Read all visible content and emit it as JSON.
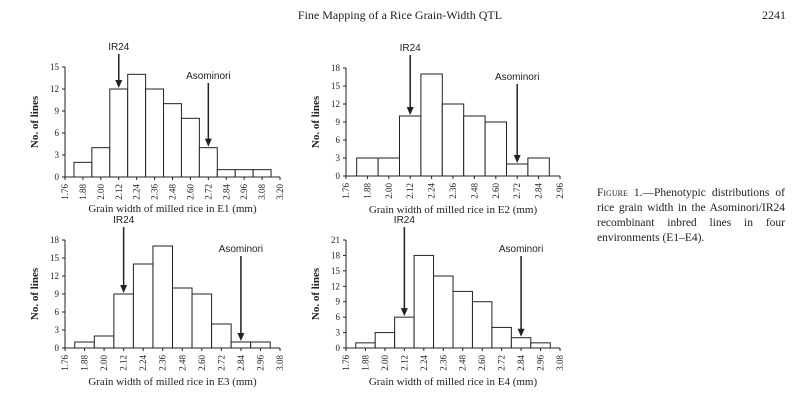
{
  "header": {
    "title": "Fine Mapping of a Rice Grain-Width QTL",
    "page": "2241"
  },
  "caption": {
    "label": "Figure 1.",
    "text": "—Phenotypic distributions of rice grain width in the Asominori/IR24 recombinant inbred lines in four environments (E1–E4)."
  },
  "chart_data": [
    {
      "type": "histogram",
      "xlabel": "Grain width of milled rice in E1 (mm)",
      "ylabel": "No. of lines",
      "bins": [
        1.82,
        1.94,
        2.06,
        2.18,
        2.3,
        2.42,
        2.54,
        2.66,
        2.78,
        2.9,
        3.02,
        3.14
      ],
      "values": [
        2,
        4,
        12,
        14,
        12,
        10,
        8,
        4,
        1,
        1,
        1
      ],
      "color": "#ffffff",
      "xlim": [
        1.76,
        3.2
      ],
      "xticks": [
        1.76,
        1.88,
        {
          "value": 2,
          "label": "2.00"
        },
        2.12,
        2.24,
        2.36,
        2.48,
        {
          "value": 2.6,
          "label": "2.60"
        },
        2.72,
        2.84,
        2.96,
        3.08,
        {
          "value": 3.2,
          "label": "3.20"
        }
      ],
      "ylim": [
        0,
        15
      ],
      "yticks": [
        0,
        3,
        6,
        9,
        12,
        15
      ],
      "annotations": [
        {
          "text": "IR24",
          "x": 2.12
        },
        {
          "text": "Asominori",
          "x": 2.72
        }
      ]
    },
    {
      "type": "histogram",
      "xlabel": "Grain width of milled rice in E2 (mm)",
      "ylabel": "No. of lines",
      "bins": [
        1.82,
        1.94,
        2.06,
        2.18,
        2.3,
        2.42,
        2.54,
        2.66,
        2.78,
        2.9
      ],
      "values": [
        3,
        3,
        10,
        17,
        12,
        10,
        9,
        2,
        3
      ],
      "color": "#ffffff",
      "xlim": [
        1.76,
        2.96
      ],
      "xticks": [
        1.76,
        1.88,
        {
          "value": 2,
          "label": "2.00"
        },
        2.12,
        2.24,
        2.36,
        2.48,
        {
          "value": 2.6,
          "label": "2.60"
        },
        2.72,
        2.84,
        2.96
      ],
      "ylim": [
        0,
        18
      ],
      "yticks": [
        0,
        3,
        6,
        9,
        12,
        15,
        18
      ],
      "annotations": [
        {
          "text": "IR24",
          "x": 2.12
        },
        {
          "text": "Asominori",
          "x": 2.72
        }
      ]
    },
    {
      "type": "histogram",
      "xlabel": "Grain width of milled rice in E3 (mm)",
      "ylabel": "No. of lines",
      "bins": [
        1.82,
        1.94,
        2.06,
        2.18,
        2.3,
        2.42,
        2.54,
        2.66,
        2.78,
        2.9,
        3.02
      ],
      "values": [
        1,
        2,
        9,
        14,
        17,
        10,
        9,
        4,
        1,
        1
      ],
      "color": "#ffffff",
      "xlim": [
        1.76,
        3.08
      ],
      "xticks": [
        1.76,
        1.88,
        {
          "value": 2,
          "label": "2.00"
        },
        2.12,
        2.24,
        2.36,
        2.48,
        {
          "value": 2.6,
          "label": "2.60"
        },
        2.72,
        2.84,
        2.96,
        3.08
      ],
      "ylim": [
        0,
        18
      ],
      "yticks": [
        0,
        3,
        6,
        9,
        12,
        15,
        18
      ],
      "annotations": [
        {
          "text": "IR24",
          "x": 2.12
        },
        {
          "text": "Asominori",
          "x": 2.84
        }
      ]
    },
    {
      "type": "histogram",
      "xlabel": "Grain width of milled rice in E4 (mm)",
      "ylabel": "No. of lines",
      "bins": [
        1.82,
        1.94,
        2.06,
        2.18,
        2.3,
        2.42,
        2.54,
        2.66,
        2.78,
        2.9,
        3.02
      ],
      "values": [
        1,
        3,
        6,
        18,
        14,
        11,
        9,
        4,
        2,
        1
      ],
      "color": "#ffffff",
      "xlim": [
        1.76,
        3.08
      ],
      "xticks": [
        1.76,
        1.88,
        {
          "value": 2,
          "label": "2.00"
        },
        2.12,
        2.24,
        2.36,
        2.48,
        {
          "value": 2.6,
          "label": "2.60"
        },
        2.72,
        2.84,
        2.96,
        3.08
      ],
      "ylim": [
        0,
        21
      ],
      "yticks": [
        0,
        3,
        6,
        9,
        12,
        15,
        18,
        21
      ],
      "annotations": [
        {
          "text": "IR24",
          "x": 2.12
        },
        {
          "text": "Asominori",
          "x": 2.84
        }
      ]
    }
  ]
}
